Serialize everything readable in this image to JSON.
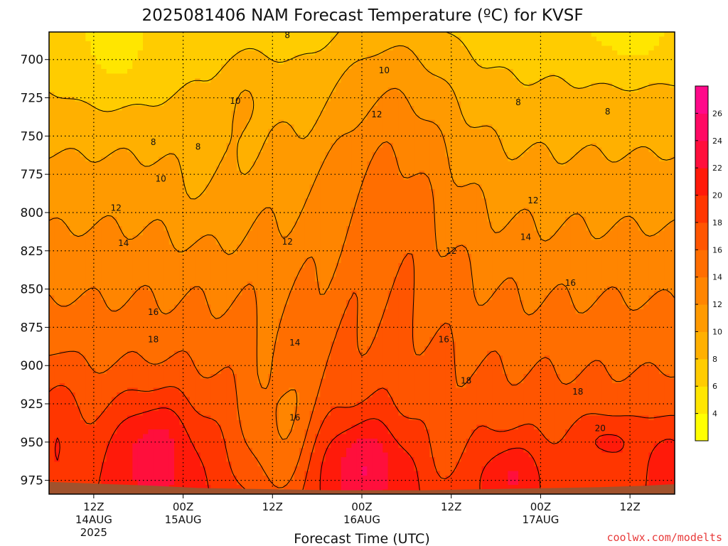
{
  "chart_data": {
    "type": "heatmap",
    "title": "2025081406 NAM Forecast Temperature (ºC) for KVSF",
    "xlabel": "Forecast Time (UTC)",
    "ylabel": "",
    "credit": "coolwx.com/modelts",
    "y_axis": {
      "ticks": [
        700,
        725,
        750,
        775,
        800,
        825,
        850,
        875,
        900,
        925,
        950,
        975
      ],
      "tick_labels": [
        "700",
        "725",
        "750",
        "775",
        "800",
        "825",
        "850",
        "875",
        "900",
        "925",
        "950",
        "975"
      ],
      "ylim": [
        984,
        682
      ],
      "unit": "hPa",
      "grid": true
    },
    "x_axis": {
      "ticks": [
        6,
        18,
        30,
        42,
        54,
        66,
        78
      ],
      "tick_labels": [
        [
          "12Z",
          "14AUG",
          "2025"
        ],
        [
          "00Z",
          "15AUG"
        ],
        [
          "12Z"
        ],
        [
          "00Z",
          "16AUG"
        ],
        [
          "12Z"
        ],
        [
          "00Z",
          "17AUG"
        ],
        [
          "12Z"
        ]
      ],
      "xlim": [
        0,
        84
      ],
      "unit": "forecast hour",
      "grid": true
    },
    "colorbar": {
      "levels": [
        2,
        4,
        6,
        8,
        10,
        12,
        14,
        16,
        18,
        20,
        22,
        24,
        26,
        28
      ],
      "tick_labels": [
        "4",
        "6",
        "8",
        "10",
        "12",
        "14",
        "16",
        "18",
        "20",
        "22",
        "24",
        "26"
      ],
      "colors": [
        "#ffff00",
        "#ffe600",
        "#ffcc00",
        "#ffb000",
        "#ff9a00",
        "#ff8500",
        "#ff6e00",
        "#ff5500",
        "#ff3600",
        "#ff1a0a",
        "#ff0f3c",
        "#ff0a64",
        "#ff0a8a"
      ]
    },
    "contour_levels": [
      8,
      10,
      12,
      14,
      16,
      18,
      20
    ],
    "ground_color": "#a0522d",
    "contour_labels": [
      {
        "text": "8",
        "x": 32,
        "p": 684
      },
      {
        "text": "10",
        "x": 45,
        "p": 707
      },
      {
        "text": "8",
        "x": 63,
        "p": 728
      },
      {
        "text": "8",
        "x": 75,
        "p": 734
      },
      {
        "text": "10",
        "x": 25,
        "p": 727
      },
      {
        "text": "12",
        "x": 44,
        "p": 736
      },
      {
        "text": "8",
        "x": 14,
        "p": 754
      },
      {
        "text": "8",
        "x": 20,
        "p": 757
      },
      {
        "text": "10",
        "x": 15,
        "p": 778
      },
      {
        "text": "12",
        "x": 65,
        "p": 792
      },
      {
        "text": "12",
        "x": 9,
        "p": 797
      },
      {
        "text": "12",
        "x": 32,
        "p": 819
      },
      {
        "text": "14",
        "x": 10,
        "p": 820
      },
      {
        "text": "14",
        "x": 64,
        "p": 816
      },
      {
        "text": "12",
        "x": 54,
        "p": 825
      },
      {
        "text": "16",
        "x": 70,
        "p": 846
      },
      {
        "text": "16",
        "x": 14,
        "p": 865
      },
      {
        "text": "14",
        "x": 33,
        "p": 885
      },
      {
        "text": "16",
        "x": 53,
        "p": 883
      },
      {
        "text": "18",
        "x": 14,
        "p": 883
      },
      {
        "text": "18",
        "x": 56,
        "p": 910
      },
      {
        "text": "18",
        "x": 71,
        "p": 917
      },
      {
        "text": "20",
        "x": 74,
        "p": 941
      },
      {
        "text": "16",
        "x": 33,
        "p": 934
      }
    ]
  }
}
